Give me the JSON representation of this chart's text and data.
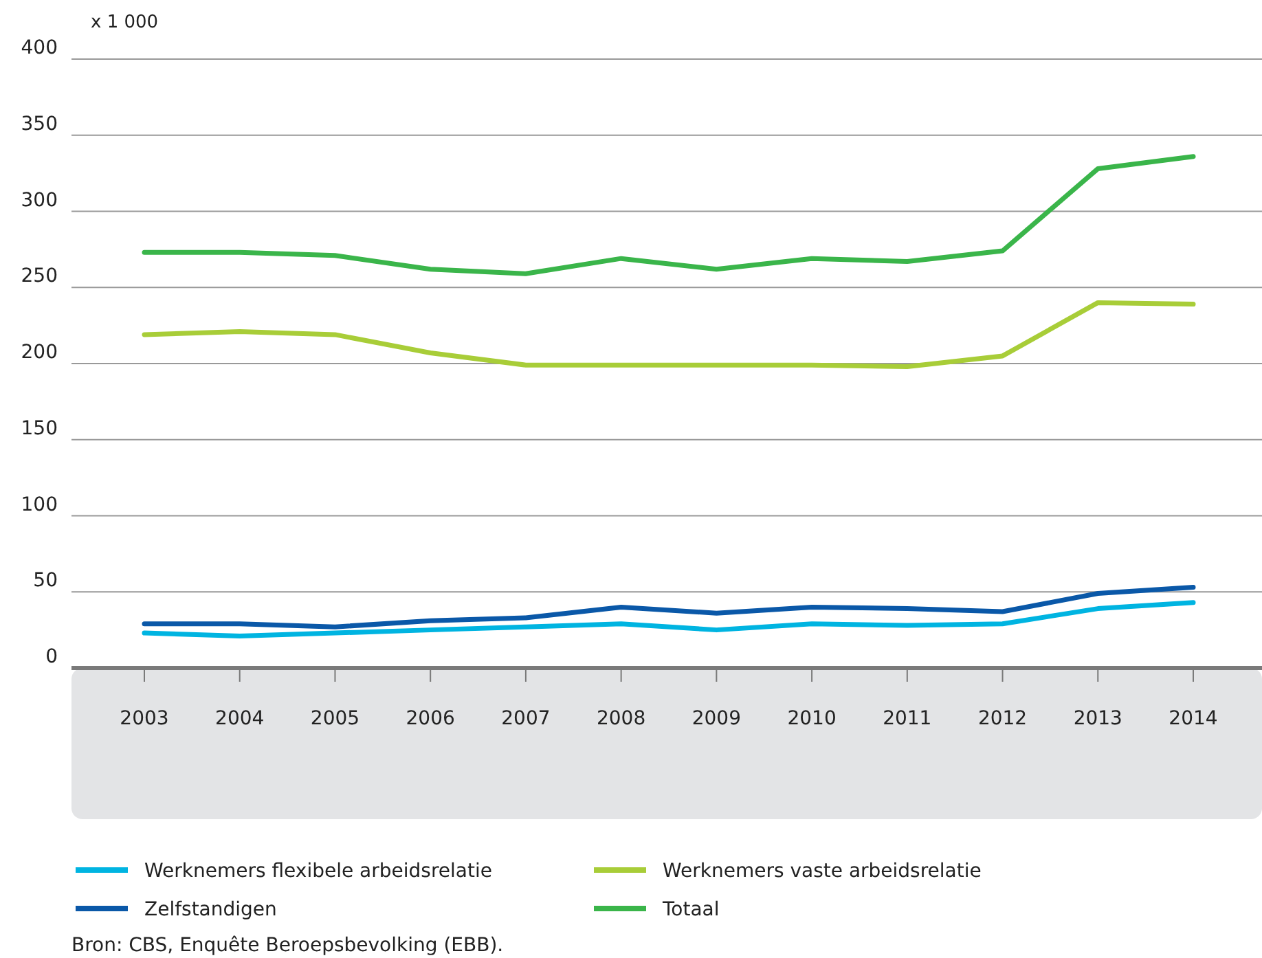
{
  "chart_data": {
    "type": "line",
    "ylabel": "x 1 000",
    "categories": [
      "2003",
      "2004",
      "2005",
      "2006",
      "2007",
      "2008",
      "2009",
      "2010",
      "2011",
      "2012",
      "2013",
      "2014"
    ],
    "series": [
      {
        "name": "Werknemers flexibele arbeidsrelatie",
        "color": "#00b4e1",
        "values": [
          23,
          21,
          23,
          25,
          27,
          29,
          25,
          29,
          28,
          29,
          39,
          43
        ]
      },
      {
        "name": "Werknemers vaste arbeidsrelatie",
        "color": "#a8cd38",
        "values": [
          219,
          221,
          219,
          207,
          199,
          199,
          199,
          199,
          198,
          205,
          240,
          239
        ]
      },
      {
        "name": "Zelfstandigen",
        "color": "#0a58a8",
        "values": [
          29,
          29,
          27,
          31,
          33,
          40,
          36,
          40,
          39,
          37,
          49,
          53
        ]
      },
      {
        "name": "Totaal",
        "color": "#3ab54a",
        "values": [
          273,
          273,
          271,
          262,
          259,
          269,
          262,
          269,
          267,
          274,
          328,
          336
        ]
      }
    ],
    "ylim": [
      0,
      400
    ],
    "yticks": [
      0,
      50,
      100,
      150,
      200,
      250,
      300,
      350,
      400
    ],
    "grid": "y",
    "legend": "bottom",
    "marker": "none",
    "line_style": "solid",
    "annotations": [
      "Bron: CBS, Enquête Beroepsbevolking (EBB)."
    ]
  }
}
